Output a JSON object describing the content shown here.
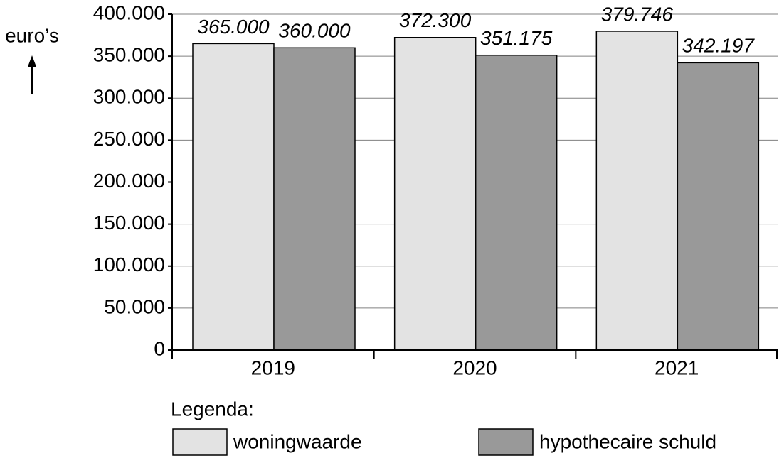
{
  "chart_data": {
    "type": "bar",
    "y_label": "euro’s",
    "legend_title": "Legenda:",
    "categories": [
      "2019",
      "2020",
      "2021"
    ],
    "series": [
      {
        "name": "woningwaarde",
        "color": "#e3e3e3",
        "values": [
          365000,
          372300,
          379746
        ],
        "value_labels": [
          "365.000",
          "372.300",
          "379.746"
        ]
      },
      {
        "name": "hypothecaire schuld",
        "color": "#999999",
        "values": [
          360000,
          351175,
          342197
        ],
        "value_labels": [
          "360.000",
          "351.175",
          "342.197"
        ]
      }
    ],
    "ylim": [
      0,
      400000
    ],
    "yticks": [
      0,
      {
        "value": 50000,
        "label": "50.000"
      },
      {
        "value": 100000,
        "label": "100.000"
      },
      {
        "value": 150000,
        "label": "150.000"
      },
      {
        "value": 200000,
        "label": "200.000"
      },
      {
        "value": 250000,
        "label": "250.000"
      },
      {
        "value": 300000,
        "label": "300.000"
      },
      {
        "value": 350000,
        "label": "350.000"
      },
      {
        "value": 400000,
        "label": "400.000"
      }
    ],
    "grid": true
  }
}
